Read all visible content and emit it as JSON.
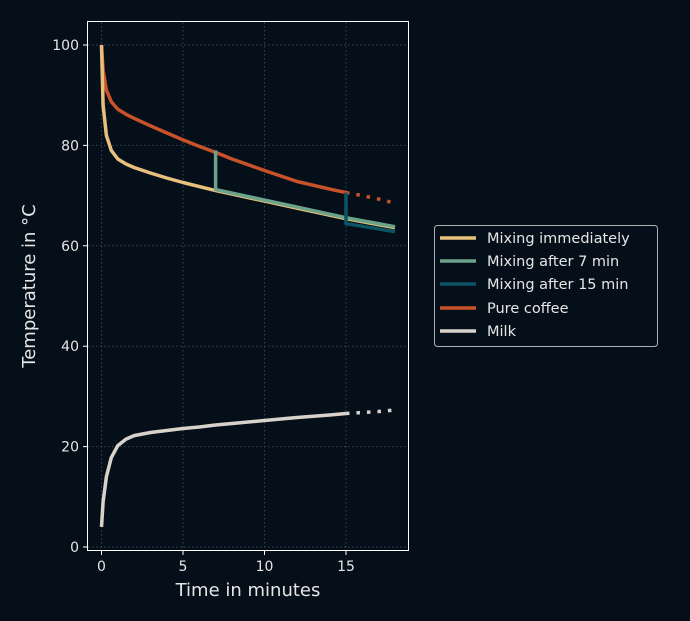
{
  "chart_data": {
    "type": "line",
    "title": "",
    "xlabel": "Time in minutes",
    "ylabel": "Temperature in °C",
    "xlim": [
      -0.9,
      18.9
    ],
    "ylim": [
      -1,
      105
    ],
    "xticks": [
      0,
      5,
      10,
      15
    ],
    "yticks": [
      0,
      20,
      40,
      60,
      80,
      100
    ],
    "grid": true,
    "legend_position": "right, outside",
    "background": "#050f19",
    "series": [
      {
        "name": "Mixing immediately",
        "color": "#e8c07d",
        "style": "solid",
        "x": [
          0,
          0.1,
          0.3,
          0.6,
          1,
          1.5,
          2,
          3,
          4,
          5,
          6,
          7,
          8,
          10,
          12,
          14,
          15,
          16,
          18
        ],
        "y": [
          100,
          88,
          82,
          79,
          77.3,
          76.3,
          75.6,
          74.5,
          73.5,
          72.6,
          71.8,
          71,
          70.3,
          68.9,
          67.5,
          66.1,
          65.4,
          64.8,
          63.6
        ]
      },
      {
        "name": "Mixing after 7 min",
        "color": "#6ba38a",
        "style": "solid",
        "x": [
          7,
          7,
          8,
          10,
          12,
          14,
          15,
          16,
          18
        ],
        "y": [
          79,
          71.2,
          70.5,
          69.1,
          67.7,
          66.3,
          65.6,
          65,
          63.8
        ]
      },
      {
        "name": "Mixing after 15 min",
        "color": "#0b5566",
        "style": "solid",
        "x": [
          15,
          15,
          16,
          18
        ],
        "y": [
          70.6,
          64.4,
          63.9,
          62.8
        ]
      },
      {
        "name": "Pure coffee",
        "color": "#c8522a",
        "style": "solid",
        "x": [
          0,
          0.1,
          0.3,
          0.6,
          1,
          1.5,
          2,
          3,
          4,
          5,
          6,
          7,
          8,
          10,
          12,
          14,
          15
        ],
        "y": [
          100,
          95,
          91,
          88.7,
          87.2,
          86.2,
          85.4,
          83.9,
          82.5,
          81.1,
          79.8,
          78.6,
          77.3,
          75,
          72.8,
          71.3,
          70.6
        ]
      },
      {
        "name": "Pure coffee (extrapolated)",
        "color": "#c8522a",
        "style": "dotted",
        "x": [
          15,
          16,
          17,
          18
        ],
        "y": [
          70.6,
          70,
          69.3,
          68.5
        ]
      },
      {
        "name": "Milk",
        "color": "#d9d2cb",
        "style": "solid",
        "x": [
          0,
          0.1,
          0.3,
          0.6,
          1,
          1.5,
          2,
          3,
          4,
          5,
          6,
          7,
          8,
          10,
          12,
          14,
          15
        ],
        "y": [
          4,
          9,
          14,
          17.8,
          20.2,
          21.5,
          22.2,
          22.8,
          23.2,
          23.6,
          23.9,
          24.3,
          24.6,
          25.2,
          25.8,
          26.3,
          26.6
        ]
      },
      {
        "name": "Milk (extrapolated)",
        "color": "#d9d2cb",
        "style": "dotted",
        "x": [
          15,
          16,
          17,
          18
        ],
        "y": [
          26.6,
          26.8,
          27,
          27.3
        ]
      }
    ]
  },
  "legend": {
    "items": [
      {
        "label": "Mixing immediately",
        "color": "#e8c07d"
      },
      {
        "label": "Mixing after 7 min",
        "color": "#6ba38a"
      },
      {
        "label": "Mixing after 15 min",
        "color": "#0b5566"
      },
      {
        "label": "Pure coffee",
        "color": "#c8522a"
      },
      {
        "label": "Milk",
        "color": "#d9d2cb"
      }
    ]
  },
  "axes": {
    "xlabel": "Time in minutes",
    "ylabel": "Temperature in °C",
    "xtick_labels": [
      "0",
      "5",
      "10",
      "15"
    ],
    "ytick_labels": [
      "0",
      "20",
      "40",
      "60",
      "80",
      "100"
    ]
  }
}
